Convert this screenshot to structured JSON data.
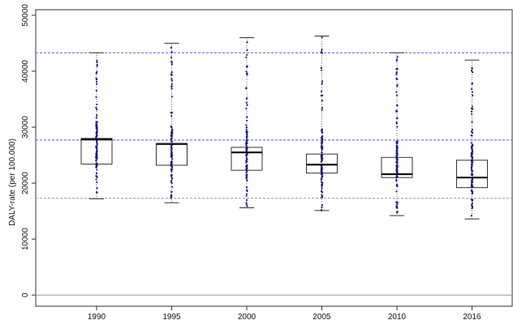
{
  "chart_data": {
    "type": "box",
    "title": "",
    "xlabel": "",
    "ylabel": "DALY-rate (per 100.000)",
    "ylim": [
      -2000,
      51000
    ],
    "yticks": [
      0,
      10000,
      20000,
      30000,
      40000,
      50000
    ],
    "ytick_labels": [
      "0",
      "10000",
      "20000",
      "30000",
      "40000",
      "50000"
    ],
    "categories": [
      "1990",
      "1995",
      "2000",
      "2005",
      "2010",
      "2016"
    ],
    "boxes": [
      {
        "category": "1990",
        "min": 17200,
        "q1": 23400,
        "median": 27800,
        "q3": 28000,
        "max": 43300
      },
      {
        "category": "1995",
        "min": 16500,
        "q1": 23200,
        "median": 27000,
        "q3": 27100,
        "max": 45000
      },
      {
        "category": "2000",
        "min": 15600,
        "q1": 22300,
        "median": 25500,
        "q3": 26400,
        "max": 46000
      },
      {
        "category": "2005",
        "min": 15100,
        "q1": 21800,
        "median": 23300,
        "q3": 25200,
        "max": 46300
      },
      {
        "category": "2010",
        "min": 14200,
        "q1": 21000,
        "median": 21600,
        "q3": 24600,
        "max": 43300
      },
      {
        "category": "2016",
        "min": 13600,
        "q1": 19200,
        "median": 21000,
        "q3": 24100,
        "max": 42000
      }
    ],
    "reference_lines": [
      {
        "y": 43300,
        "color": "#5555ff",
        "style": "dashed"
      },
      {
        "y": 27700,
        "color": "#5555ff",
        "style": "dashed"
      },
      {
        "y": 17300,
        "color": "#999999",
        "style": "dashed"
      },
      {
        "y": 0,
        "color": "#999999",
        "style": "solid"
      }
    ],
    "point_color": "#1a1a8c",
    "grid": false
  }
}
